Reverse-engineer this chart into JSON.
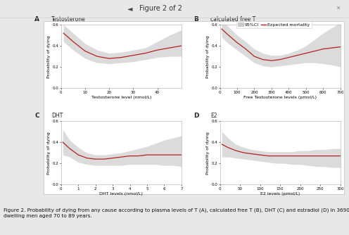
{
  "title_main": "Figure 2 of 2",
  "figure_caption": "Figure 2. Probability of dying from any cause according to plasma levels of T (A), calculated free T (B), DHT (C) and estradiol (D) in 3690 community-\ndwelling men aged 70 to 89 years.",
  "legend_labels": [
    "95%CI",
    "Expected mortality"
  ],
  "subplots": [
    {
      "label": "A",
      "title": "Testosterone",
      "xlabel": "Testosterone level (nmol/L)",
      "ylabel": "Probability of dying",
      "xlim": [
        0,
        50
      ],
      "ylim": [
        0,
        0.6
      ],
      "yticks": [
        0.0,
        0.2,
        0.4,
        0.6
      ],
      "xticks": [
        0,
        10,
        20,
        30,
        40
      ],
      "x": [
        1,
        5,
        10,
        15,
        20,
        25,
        30,
        35,
        40,
        45,
        50
      ],
      "y": [
        0.52,
        0.44,
        0.35,
        0.3,
        0.28,
        0.29,
        0.31,
        0.33,
        0.36,
        0.38,
        0.4
      ],
      "ci_upper": [
        0.6,
        0.52,
        0.42,
        0.36,
        0.33,
        0.34,
        0.36,
        0.38,
        0.44,
        0.5,
        0.55
      ],
      "ci_lower": [
        0.44,
        0.36,
        0.28,
        0.24,
        0.23,
        0.24,
        0.25,
        0.27,
        0.29,
        0.3,
        0.3
      ]
    },
    {
      "label": "B",
      "title": "calculated free T",
      "xlabel": "Free Testosterone levels (pmol/L)",
      "ylabel": "Probability of dying",
      "xlim": [
        0,
        700
      ],
      "ylim": [
        0,
        0.6
      ],
      "yticks": [
        0.0,
        0.2,
        0.4,
        0.6
      ],
      "xticks": [
        0,
        100,
        200,
        300,
        400,
        500,
        600,
        700
      ],
      "x": [
        10,
        50,
        100,
        150,
        200,
        250,
        300,
        350,
        400,
        450,
        500,
        550,
        600,
        650,
        700
      ],
      "y": [
        0.56,
        0.5,
        0.43,
        0.37,
        0.3,
        0.27,
        0.26,
        0.27,
        0.29,
        0.31,
        0.33,
        0.35,
        0.37,
        0.38,
        0.39
      ],
      "ci_upper": [
        0.65,
        0.58,
        0.5,
        0.44,
        0.37,
        0.33,
        0.31,
        0.31,
        0.33,
        0.36,
        0.4,
        0.46,
        0.52,
        0.57,
        0.62
      ],
      "ci_lower": [
        0.48,
        0.42,
        0.36,
        0.3,
        0.24,
        0.21,
        0.2,
        0.21,
        0.22,
        0.23,
        0.24,
        0.24,
        0.23,
        0.22,
        0.2
      ]
    },
    {
      "label": "C",
      "title": "DHT",
      "xlabel": "DHT levels (nmol/L)",
      "ylabel": "Probability of dying",
      "xlim": [
        0,
        7
      ],
      "ylim": [
        0,
        0.6
      ],
      "yticks": [
        0.0,
        0.2,
        0.4,
        0.6
      ],
      "xticks": [
        0,
        1,
        2,
        3,
        4,
        5,
        6,
        7
      ],
      "x": [
        0.1,
        0.5,
        1.0,
        1.5,
        2.0,
        2.5,
        3.0,
        3.5,
        4.0,
        4.5,
        5.0,
        5.5,
        6.0,
        6.5,
        7.0
      ],
      "y": [
        0.4,
        0.34,
        0.28,
        0.25,
        0.24,
        0.24,
        0.25,
        0.26,
        0.27,
        0.27,
        0.28,
        0.28,
        0.28,
        0.28,
        0.28
      ],
      "ci_upper": [
        0.52,
        0.42,
        0.35,
        0.3,
        0.28,
        0.28,
        0.29,
        0.3,
        0.32,
        0.34,
        0.36,
        0.39,
        0.42,
        0.44,
        0.46
      ],
      "ci_lower": [
        0.28,
        0.26,
        0.21,
        0.19,
        0.18,
        0.18,
        0.18,
        0.18,
        0.19,
        0.19,
        0.19,
        0.19,
        0.18,
        0.18,
        0.17
      ]
    },
    {
      "label": "D",
      "title": "E2",
      "xlabel": "E2 levels (pmol/L)",
      "ylabel": "Probability of dying",
      "xlim": [
        0,
        300
      ],
      "ylim": [
        0,
        0.6
      ],
      "yticks": [
        0.0,
        0.2,
        0.4,
        0.6
      ],
      "xticks": [
        0,
        50,
        100,
        150,
        200,
        250,
        300
      ],
      "x": [
        5,
        20,
        40,
        60,
        80,
        100,
        120,
        140,
        160,
        180,
        200,
        220,
        240,
        260,
        280,
        300
      ],
      "y": [
        0.38,
        0.35,
        0.32,
        0.3,
        0.29,
        0.28,
        0.27,
        0.27,
        0.27,
        0.27,
        0.27,
        0.27,
        0.27,
        0.27,
        0.27,
        0.27
      ],
      "ci_upper": [
        0.5,
        0.44,
        0.38,
        0.35,
        0.33,
        0.32,
        0.31,
        0.31,
        0.31,
        0.31,
        0.32,
        0.32,
        0.33,
        0.33,
        0.34,
        0.34
      ],
      "ci_lower": [
        0.26,
        0.26,
        0.25,
        0.24,
        0.23,
        0.22,
        0.21,
        0.2,
        0.2,
        0.19,
        0.19,
        0.18,
        0.17,
        0.17,
        0.16,
        0.16
      ]
    }
  ],
  "bg_color": "#e8e8e8",
  "panel_bg": "#ffffff",
  "outer_panel_bg": "#ffffff",
  "line_color": "#b22222",
  "ci_color": "#cccccc",
  "ci_alpha": 0.7,
  "line_width": 0.9,
  "font_size_label": 4.5,
  "font_size_title": 5.5,
  "font_size_axis": 4.0,
  "font_size_caption": 5.2,
  "font_size_legend": 4.5,
  "font_size_panel_label": 6.5,
  "font_size_header": 7.0
}
